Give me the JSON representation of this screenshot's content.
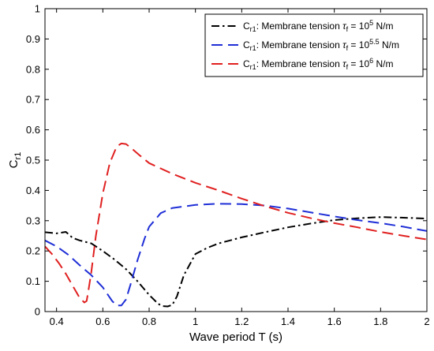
{
  "chart_data": {
    "type": "line",
    "title": "",
    "xlabel": "Wave period T (s)",
    "ylabel_main": "C",
    "ylabel_sub": "r1",
    "xlim": [
      0.35,
      2.0
    ],
    "ylim": [
      0,
      1
    ],
    "xticks": [
      0.4,
      0.6,
      0.8,
      1,
      1.2,
      1.4,
      1.6,
      1.8,
      2
    ],
    "xtick_labels": [
      "0.4",
      "0.6",
      "0.8",
      "1",
      "1.2",
      "1.4",
      "1.6",
      "1.8",
      "2"
    ],
    "yticks": [
      0,
      0.1,
      0.2,
      0.3,
      0.4,
      0.5,
      0.6,
      0.7,
      0.8,
      0.9,
      1
    ],
    "ytick_labels": [
      "0",
      "0.1",
      "0.2",
      "0.3",
      "0.4",
      "0.5",
      "0.6",
      "0.7",
      "0.8",
      "0.9",
      "1"
    ],
    "grid": false,
    "legend_position": "top-right",
    "series": [
      {
        "legend_main": "C",
        "legend_sub": "r1",
        "legend_text": ": Membrane tension ",
        "legend_tau": "τ",
        "legend_tau_sub": "f",
        "legend_eq": " = 10",
        "legend_exp": "5",
        "legend_unit": " N/m",
        "color": "#000000",
        "dash": "dashdot",
        "x": [
          0.35,
          0.4,
          0.44,
          0.47,
          0.5,
          0.55,
          0.6,
          0.65,
          0.7,
          0.75,
          0.8,
          0.84,
          0.86,
          0.88,
          0.9,
          0.92,
          0.95,
          1.0,
          1.05,
          1.1,
          1.2,
          1.3,
          1.4,
          1.5,
          1.6,
          1.7,
          1.8,
          1.9,
          2.0
        ],
        "y": [
          0.262,
          0.258,
          0.263,
          0.243,
          0.235,
          0.225,
          0.2,
          0.172,
          0.14,
          0.1,
          0.055,
          0.025,
          0.018,
          0.017,
          0.022,
          0.05,
          0.12,
          0.19,
          0.21,
          0.225,
          0.245,
          0.262,
          0.278,
          0.291,
          0.302,
          0.308,
          0.312,
          0.31,
          0.307
        ]
      },
      {
        "legend_main": "C",
        "legend_sub": "r1",
        "legend_text": ": Membrane tension ",
        "legend_tau": "τ",
        "legend_tau_sub": "f",
        "legend_eq": " = 10",
        "legend_exp": "5.5",
        "legend_unit": " N/m",
        "color": "#1f2fd6",
        "dash": "dash",
        "x": [
          0.35,
          0.4,
          0.45,
          0.5,
          0.55,
          0.6,
          0.64,
          0.66,
          0.68,
          0.7,
          0.72,
          0.75,
          0.78,
          0.8,
          0.85,
          0.9,
          1.0,
          1.1,
          1.2,
          1.3,
          1.4,
          1.5,
          1.6,
          1.7,
          1.8,
          1.9,
          2.0
        ],
        "y": [
          0.235,
          0.215,
          0.188,
          0.153,
          0.12,
          0.08,
          0.035,
          0.02,
          0.02,
          0.04,
          0.09,
          0.17,
          0.24,
          0.28,
          0.325,
          0.342,
          0.352,
          0.356,
          0.355,
          0.35,
          0.34,
          0.327,
          0.314,
          0.302,
          0.292,
          0.28,
          0.266
        ]
      },
      {
        "legend_main": "C",
        "legend_sub": "r1",
        "legend_text": ": Membrane tension ",
        "legend_tau": "τ",
        "legend_tau_sub": "f",
        "legend_eq": " = 10",
        "legend_exp": "6",
        "legend_unit": " N/m",
        "color": "#e02020",
        "dash": "dash",
        "x": [
          0.35,
          0.38,
          0.41,
          0.44,
          0.47,
          0.5,
          0.52,
          0.53,
          0.54,
          0.55,
          0.57,
          0.6,
          0.63,
          0.66,
          0.68,
          0.7,
          0.73,
          0.76,
          0.8,
          0.9,
          1.0,
          1.1,
          1.2,
          1.3,
          1.4,
          1.5,
          1.6,
          1.7,
          1.8,
          1.9,
          2.0
        ],
        "y": [
          0.215,
          0.19,
          0.16,
          0.125,
          0.085,
          0.045,
          0.03,
          0.035,
          0.08,
          0.13,
          0.25,
          0.39,
          0.49,
          0.545,
          0.555,
          0.553,
          0.535,
          0.515,
          0.49,
          0.455,
          0.425,
          0.4,
          0.373,
          0.348,
          0.326,
          0.308,
          0.292,
          0.278,
          0.263,
          0.25,
          0.238
        ]
      }
    ]
  }
}
